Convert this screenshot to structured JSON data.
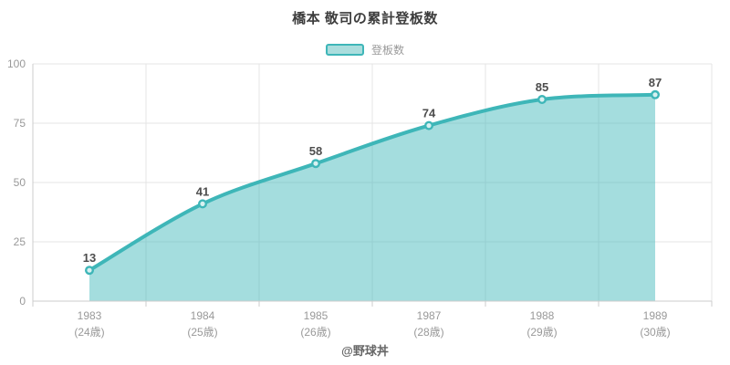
{
  "title": "橋本 敬司の累計登板数",
  "legend": {
    "label": "登板数"
  },
  "footer": "@野球丼",
  "colors": {
    "line": "#3eb6b8",
    "fill": "#3eb6b8",
    "marker_fill": "#d8f1f1",
    "value_label": "#4d4d4d",
    "tick_label": "#999999"
  },
  "chart_data": {
    "type": "area",
    "title": "橋本 敬司の累計登板数",
    "series_name": "登板数",
    "categories": [
      "1983",
      "1984",
      "1985",
      "1987",
      "1988",
      "1989"
    ],
    "age_labels": [
      "(24歳)",
      "(25歳)",
      "(26歳)",
      "(28歳)",
      "(29歳)",
      "(30歳)"
    ],
    "values": [
      13,
      41,
      58,
      74,
      85,
      87
    ],
    "xlabel": "",
    "ylabel": "",
    "ylim": [
      0,
      100
    ],
    "yticks": [
      0,
      25,
      50,
      75,
      100
    ],
    "grid": true,
    "legend_position": "top",
    "annotation": "@野球丼"
  }
}
